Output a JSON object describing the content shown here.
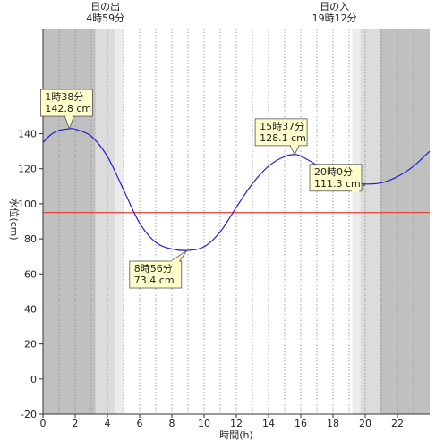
{
  "chart_data": {
    "type": "line",
    "title": "",
    "xlabel": "時間(h)",
    "ylabel": "水位(cm)",
    "xlim": [
      0,
      24
    ],
    "ylim": [
      -20,
      200
    ],
    "x_ticks": [
      0,
      2,
      4,
      6,
      8,
      10,
      12,
      14,
      16,
      18,
      20,
      22
    ],
    "y_ticks": [
      -20,
      0,
      20,
      40,
      60,
      80,
      100,
      120,
      140
    ],
    "grid": {
      "vertical_dotted_every_hours": 1,
      "horizontal": false
    },
    "reference_line": {
      "value": 95,
      "color": "#e8322c"
    },
    "line_color": "#1f1fd6",
    "series": [
      {
        "x": [
          0,
          0.5,
          1,
          1.633,
          2,
          3,
          4,
          5,
          6,
          7,
          8,
          8.933,
          10,
          11,
          12,
          13,
          14,
          15,
          15.617,
          16,
          17,
          18,
          19,
          20,
          21,
          22,
          23,
          24
        ],
        "values": [
          135,
          139.5,
          141.9,
          142.8,
          142.6,
          138.5,
          127,
          108,
          89,
          78,
          74.2,
          73.4,
          75.5,
          84,
          98,
          111.5,
          121.5,
          127,
          128.1,
          127.2,
          122,
          115.5,
          112.3,
          111.3,
          112,
          115.5,
          121.5,
          130
        ]
      }
    ],
    "twilight": {
      "night_color": "#c0c0c0",
      "civil_color": "#dcdcdc",
      "nautical_color": "#ececec",
      "day_color": "#ffffff",
      "morning": {
        "night_end": 3.25,
        "civil_end": 4.5,
        "sunrise": 4.983
      },
      "evening": {
        "sunset": 19.2,
        "civil_end": 19.7,
        "night_start": 20.9
      }
    },
    "sun_events": [
      {
        "name": "日の出",
        "time": "4時59分",
        "hour": 4.983
      },
      {
        "name": "日の入",
        "time": "19時12分",
        "hour": 19.2
      }
    ],
    "annotations": [
      {
        "time": "1時38分",
        "value": "142.8 cm",
        "hour": 1.633,
        "level": 142.8,
        "kind": "high"
      },
      {
        "time": "8時56分",
        "value": "73.4 cm",
        "hour": 8.933,
        "level": 73.4,
        "kind": "low"
      },
      {
        "time": "15時37分",
        "value": "128.1 cm",
        "hour": 15.617,
        "level": 128.1,
        "kind": "high"
      },
      {
        "time": "20時0分",
        "value": "111.3 cm",
        "hour": 20.0,
        "level": 111.3,
        "kind": "low"
      }
    ],
    "callout_style": {
      "fill": "#ffffcc",
      "stroke": "#555555"
    }
  }
}
